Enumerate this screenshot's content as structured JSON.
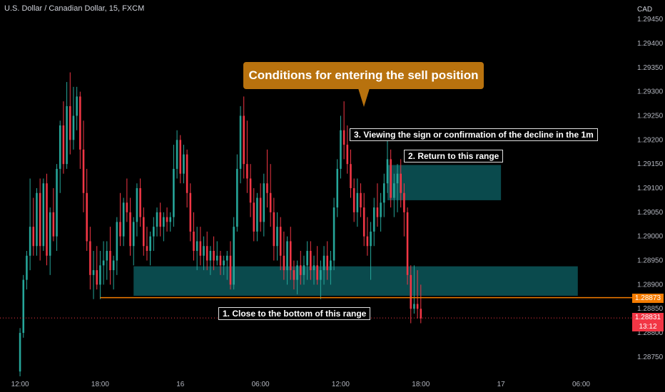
{
  "symbol": "U.S. Dollar / Canadian Dollar, 15, FXCM",
  "currency": "CAD",
  "callout": "Conditions for entering the sell position",
  "notes": {
    "step3": "3. Viewing the sign or confirmation of the decline in the 1m",
    "step2": "2. Return to this range",
    "step1": "1. Close to the bottom of this range"
  },
  "price_tags": {
    "level": "1.28873",
    "last": "1.28831",
    "countdown": "13:12"
  },
  "colors": {
    "up": "#26a69a",
    "down": "#f23645",
    "zone": "#0a4a4d",
    "level_line": "#f57c00",
    "callout": "#b8720e"
  },
  "chart_data": {
    "type": "candlestick",
    "symbol": "U.S. Dollar / Canadian Dollar, 15, FXCM",
    "ylim": [
      1.2871,
      1.2949
    ],
    "yticks": [
      1.2945,
      1.294,
      1.2935,
      1.293,
      1.2925,
      1.292,
      1.2915,
      1.291,
      1.2905,
      1.29,
      1.2895,
      1.289,
      1.2885,
      1.288,
      1.2875
    ],
    "ytick_labels": [
      "1.29450",
      "1.29400",
      "1.29350",
      "1.29300",
      "1.29250",
      "1.29200",
      "1.29150",
      "1.29100",
      "1.29050",
      "1.29000",
      "1.28950",
      "1.28900",
      "1.28850",
      "1.28800",
      "1.28750"
    ],
    "xtick_labels": [
      "12:00",
      "18:00",
      "16",
      "06:00",
      "12:00",
      "18:00",
      "17",
      "06:00"
    ],
    "xtick_bars": [
      0,
      24,
      48,
      72,
      96,
      120,
      144,
      168
    ],
    "xlim_bars": [
      -6,
      182
    ],
    "horizontal_level": 1.28873,
    "last_price": 1.28831,
    "zones": [
      {
        "from_bar": 34,
        "to_bar": 167,
        "low": 1.28877,
        "high": 1.28938
      },
      {
        "from_bar": 110,
        "to_bar": 144,
        "low": 1.29075,
        "high": 1.29148
      }
    ],
    "candles": [
      [
        1.2872,
        1.2881,
        1.2871,
        1.288
      ],
      [
        1.288,
        1.2892,
        1.2879,
        1.2891
      ],
      [
        1.2891,
        1.2897,
        1.2889,
        1.2896
      ],
      [
        1.2896,
        1.2912,
        1.2893,
        1.2902
      ],
      [
        1.2902,
        1.2908,
        1.2896,
        1.2898
      ],
      [
        1.2898,
        1.291,
        1.2896,
        1.2909
      ],
      [
        1.2909,
        1.2912,
        1.2895,
        1.2898
      ],
      [
        1.2898,
        1.2912,
        1.2897,
        1.2911
      ],
      [
        1.2911,
        1.2913,
        1.2894,
        1.2896
      ],
      [
        1.2896,
        1.2906,
        1.2892,
        1.2905
      ],
      [
        1.2905,
        1.291,
        1.2899,
        1.29
      ],
      [
        1.29,
        1.2915,
        1.2897,
        1.2914
      ],
      [
        1.2914,
        1.2924,
        1.2909,
        1.2923
      ],
      [
        1.2923,
        1.2928,
        1.2913,
        1.2915
      ],
      [
        1.2915,
        1.2932,
        1.2914,
        1.2927
      ],
      [
        1.2927,
        1.2934,
        1.2917,
        1.292
      ],
      [
        1.292,
        1.2931,
        1.2918,
        1.2925
      ],
      [
        1.2925,
        1.2931,
        1.2922,
        1.2929
      ],
      [
        1.2929,
        1.293,
        1.2914,
        1.2918
      ],
      [
        1.2918,
        1.2924,
        1.2905,
        1.2909
      ],
      [
        1.2909,
        1.2914,
        1.2897,
        1.2899
      ],
      [
        1.2899,
        1.2902,
        1.2889,
        1.2892
      ],
      [
        1.2892,
        1.2897,
        1.2887,
        1.2893
      ],
      [
        1.2893,
        1.2898,
        1.2889,
        1.289
      ],
      [
        1.289,
        1.2897,
        1.2887,
        1.2894
      ],
      [
        1.2894,
        1.2899,
        1.289,
        1.2895
      ],
      [
        1.2895,
        1.2899,
        1.2891,
        1.2897
      ],
      [
        1.2897,
        1.2902,
        1.289,
        1.2893
      ],
      [
        1.2893,
        1.2896,
        1.2889,
        1.2895
      ],
      [
        1.2895,
        1.2904,
        1.2892,
        1.2903
      ],
      [
        1.2903,
        1.2909,
        1.2898,
        1.29
      ],
      [
        1.29,
        1.2908,
        1.2898,
        1.2907
      ],
      [
        1.2907,
        1.2912,
        1.2903,
        1.2905
      ],
      [
        1.2905,
        1.2908,
        1.2896,
        1.2898
      ],
      [
        1.2898,
        1.2904,
        1.2894,
        1.2903
      ],
      [
        1.2903,
        1.2911,
        1.29,
        1.291
      ],
      [
        1.291,
        1.2912,
        1.2902,
        1.2904
      ],
      [
        1.2904,
        1.2906,
        1.2896,
        1.2898
      ],
      [
        1.2898,
        1.2902,
        1.2895,
        1.2897
      ],
      [
        1.2897,
        1.2901,
        1.2894,
        1.29
      ],
      [
        1.29,
        1.2904,
        1.2897,
        1.2902
      ],
      [
        1.2902,
        1.2906,
        1.29,
        1.2905
      ],
      [
        1.2905,
        1.2907,
        1.29,
        1.2902
      ],
      [
        1.2902,
        1.2905,
        1.2899,
        1.2904
      ],
      [
        1.2904,
        1.2906,
        1.2901,
        1.2903
      ],
      [
        1.2903,
        1.2905,
        1.2901,
        1.2904
      ],
      [
        1.2904,
        1.2919,
        1.2902,
        1.2914
      ],
      [
        1.2914,
        1.2922,
        1.2912,
        1.292
      ],
      [
        1.292,
        1.2921,
        1.2911,
        1.2913
      ],
      [
        1.2913,
        1.2919,
        1.2911,
        1.2917
      ],
      [
        1.2917,
        1.2918,
        1.2906,
        1.2909
      ],
      [
        1.2909,
        1.2911,
        1.2899,
        1.2901
      ],
      [
        1.2901,
        1.2905,
        1.2895,
        1.2897
      ],
      [
        1.2897,
        1.2902,
        1.2893,
        1.2899
      ],
      [
        1.2899,
        1.2902,
        1.2894,
        1.2896
      ],
      [
        1.2896,
        1.29,
        1.2893,
        1.2898
      ],
      [
        1.2898,
        1.2901,
        1.2893,
        1.2895
      ],
      [
        1.2895,
        1.2898,
        1.2892,
        1.2897
      ],
      [
        1.2897,
        1.29,
        1.2893,
        1.2895
      ],
      [
        1.2895,
        1.2899,
        1.2894,
        1.2896
      ],
      [
        1.2896,
        1.2897,
        1.2892,
        1.2894
      ],
      [
        1.2894,
        1.2896,
        1.2892,
        1.2895
      ],
      [
        1.2895,
        1.2897,
        1.2891,
        1.2896
      ],
      [
        1.2896,
        1.2899,
        1.2889,
        1.289
      ],
      [
        1.289,
        1.2904,
        1.2889,
        1.2902
      ],
      [
        1.2902,
        1.2917,
        1.2901,
        1.2914
      ],
      [
        1.2914,
        1.2927,
        1.2911,
        1.2925
      ],
      [
        1.2925,
        1.2929,
        1.2912,
        1.2915
      ],
      [
        1.2915,
        1.2924,
        1.2909,
        1.2912
      ],
      [
        1.2912,
        1.2915,
        1.2904,
        1.2907
      ],
      [
        1.2907,
        1.291,
        1.2899,
        1.2901
      ],
      [
        1.2901,
        1.2909,
        1.2899,
        1.2908
      ],
      [
        1.2908,
        1.2911,
        1.2901,
        1.2903
      ],
      [
        1.2903,
        1.2913,
        1.29,
        1.2911
      ],
      [
        1.2911,
        1.2918,
        1.2906,
        1.2909
      ],
      [
        1.2909,
        1.2915,
        1.2902,
        1.2905
      ],
      [
        1.2905,
        1.2908,
        1.2895,
        1.2898
      ],
      [
        1.2898,
        1.2905,
        1.2895,
        1.2902
      ],
      [
        1.2902,
        1.2904,
        1.2893,
        1.2896
      ],
      [
        1.2896,
        1.2901,
        1.2891,
        1.2893
      ],
      [
        1.2893,
        1.29,
        1.289,
        1.2899
      ],
      [
        1.2899,
        1.2902,
        1.2891,
        1.2893
      ],
      [
        1.2893,
        1.2895,
        1.2889,
        1.2891
      ],
      [
        1.2891,
        1.2895,
        1.2888,
        1.2894
      ],
      [
        1.2894,
        1.2897,
        1.289,
        1.2892
      ],
      [
        1.2892,
        1.2896,
        1.289,
        1.2894
      ],
      [
        1.2894,
        1.2899,
        1.2891,
        1.2897
      ],
      [
        1.2897,
        1.2899,
        1.2891,
        1.2893
      ],
      [
        1.2893,
        1.2896,
        1.289,
        1.2894
      ],
      [
        1.2894,
        1.2898,
        1.289,
        1.2891
      ],
      [
        1.2891,
        1.2895,
        1.2887,
        1.2893
      ],
      [
        1.2893,
        1.2898,
        1.289,
        1.2896
      ],
      [
        1.2896,
        1.2899,
        1.2891,
        1.2893
      ],
      [
        1.2893,
        1.2897,
        1.289,
        1.2895
      ],
      [
        1.2895,
        1.2908,
        1.2893,
        1.2906
      ],
      [
        1.2906,
        1.2916,
        1.2904,
        1.2914
      ],
      [
        1.2914,
        1.2925,
        1.2912,
        1.2922
      ],
      [
        1.2922,
        1.2928,
        1.2916,
        1.2919
      ],
      [
        1.2919,
        1.2923,
        1.2913,
        1.2915
      ],
      [
        1.2915,
        1.2918,
        1.2908,
        1.291
      ],
      [
        1.291,
        1.2912,
        1.2903,
        1.2905
      ],
      [
        1.2905,
        1.2912,
        1.2902,
        1.2909
      ],
      [
        1.2909,
        1.2911,
        1.2904,
        1.2906
      ],
      [
        1.2906,
        1.2909,
        1.2898,
        1.29
      ],
      [
        1.29,
        1.2904,
        1.2896,
        1.2898
      ],
      [
        1.2898,
        1.2903,
        1.2891,
        1.2901
      ],
      [
        1.2901,
        1.2908,
        1.2898,
        1.2906
      ],
      [
        1.2906,
        1.2911,
        1.2902,
        1.2904
      ],
      [
        1.2904,
        1.2909,
        1.2901,
        1.2907
      ],
      [
        1.2907,
        1.2913,
        1.2904,
        1.2911
      ],
      [
        1.2911,
        1.292,
        1.2909,
        1.2916
      ],
      [
        1.2916,
        1.2918,
        1.2906,
        1.2908
      ],
      [
        1.2908,
        1.2913,
        1.2904,
        1.2911
      ],
      [
        1.2911,
        1.2915,
        1.2905,
        1.2913
      ],
      [
        1.2913,
        1.2916,
        1.2906,
        1.2909
      ],
      [
        1.2909,
        1.2911,
        1.29,
        1.2905
      ],
      [
        1.2905,
        1.2906,
        1.289,
        1.2892
      ],
      [
        1.2892,
        1.2894,
        1.2882,
        1.2885
      ],
      [
        1.2885,
        1.2894,
        1.2884,
        1.2886
      ],
      [
        1.2886,
        1.2893,
        1.2883,
        1.2885
      ],
      [
        1.2885,
        1.289,
        1.2882,
        1.2883
      ]
    ]
  }
}
